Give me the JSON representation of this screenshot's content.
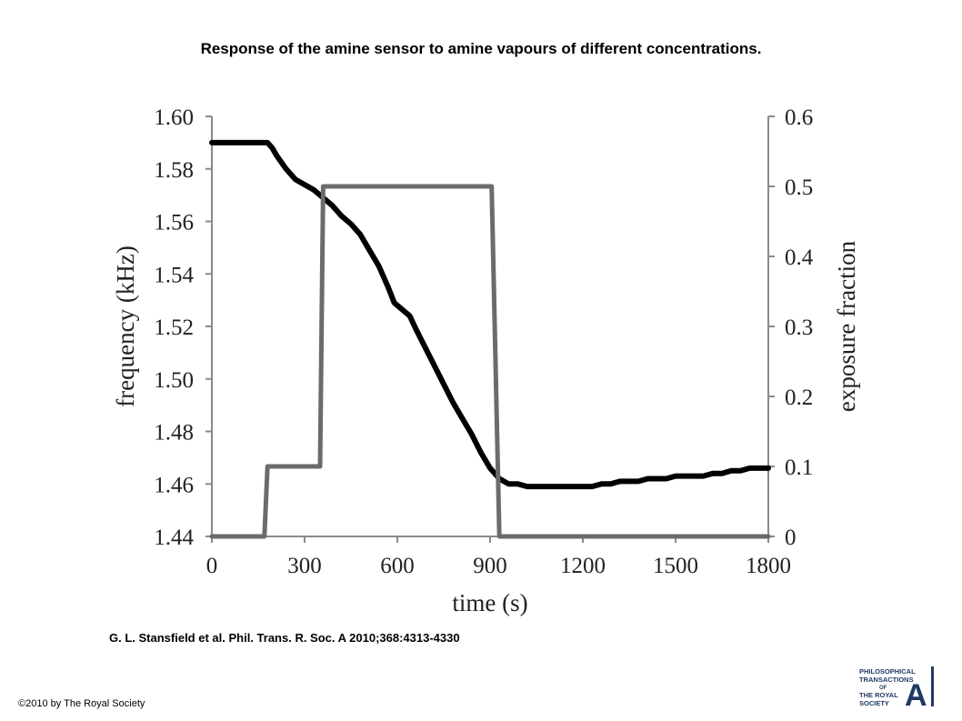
{
  "title": "Response of the amine sensor to amine vapours of different concentrations.",
  "citation": "G. L. Stansfield et al. Phil. Trans. R. Soc. A 2010;368:4313-4330",
  "copyright": "©2010 by The Royal Society",
  "logo": {
    "line1": "PHILOSOPHICAL",
    "line2": "TRANSACTIONS",
    "line3": "OF",
    "line4": "THE ROYAL",
    "line5": "SOCIETY",
    "letter": "A",
    "color": "#1f3a64"
  },
  "chart_data": {
    "type": "line",
    "title": "",
    "xlabel": "time (s)",
    "ylabel": "frequency (kHz)",
    "y2label": "exposure fraction",
    "xlim": [
      0,
      1800
    ],
    "ylim": [
      1.44,
      1.6
    ],
    "y2lim": [
      0,
      0.6
    ],
    "xticks": [
      "0",
      "300",
      "600",
      "900",
      "1200",
      "1500",
      "1800"
    ],
    "yticks": [
      "1.44",
      "1.46",
      "1.48",
      "1.50",
      "1.52",
      "1.54",
      "1.56",
      "1.58",
      "1.60"
    ],
    "y2ticks": [
      "0",
      "0.1",
      "0.2",
      "0.3",
      "0.4",
      "0.5",
      "0.6"
    ],
    "grid": false,
    "series": [
      {
        "axis": "left",
        "color": "#000000",
        "x": [
          0,
          180,
          195,
          210,
          240,
          270,
          300,
          330,
          360,
          390,
          420,
          450,
          480,
          510,
          540,
          570,
          590,
          610,
          640,
          660,
          690,
          720,
          750,
          780,
          810,
          840,
          870,
          900,
          930,
          960,
          990,
          1020,
          1050,
          1080,
          1110,
          1140,
          1170,
          1200,
          1230,
          1260,
          1290,
          1320,
          1350,
          1380,
          1410,
          1440,
          1470,
          1500,
          1530,
          1560,
          1590,
          1620,
          1650,
          1680,
          1710,
          1740,
          1770,
          1800
        ],
        "values": [
          1.59,
          1.59,
          1.588,
          1.585,
          1.58,
          1.576,
          1.574,
          1.572,
          1.569,
          1.566,
          1.562,
          1.559,
          1.555,
          1.549,
          1.543,
          1.535,
          1.529,
          1.527,
          1.524,
          1.519,
          1.512,
          1.505,
          1.498,
          1.491,
          1.485,
          1.479,
          1.472,
          1.466,
          1.462,
          1.46,
          1.46,
          1.459,
          1.459,
          1.459,
          1.459,
          1.459,
          1.459,
          1.459,
          1.459,
          1.46,
          1.46,
          1.461,
          1.461,
          1.461,
          1.462,
          1.462,
          1.462,
          1.463,
          1.463,
          1.463,
          1.463,
          1.464,
          1.464,
          1.465,
          1.465,
          1.466,
          1.466,
          1.466
        ]
      },
      {
        "axis": "right",
        "color": "#6b6b6b",
        "x": [
          0,
          170,
          180,
          350,
          360,
          905,
          930,
          1800
        ],
        "values": [
          0,
          0,
          0.1,
          0.1,
          0.5,
          0.5,
          0,
          0
        ]
      }
    ]
  }
}
